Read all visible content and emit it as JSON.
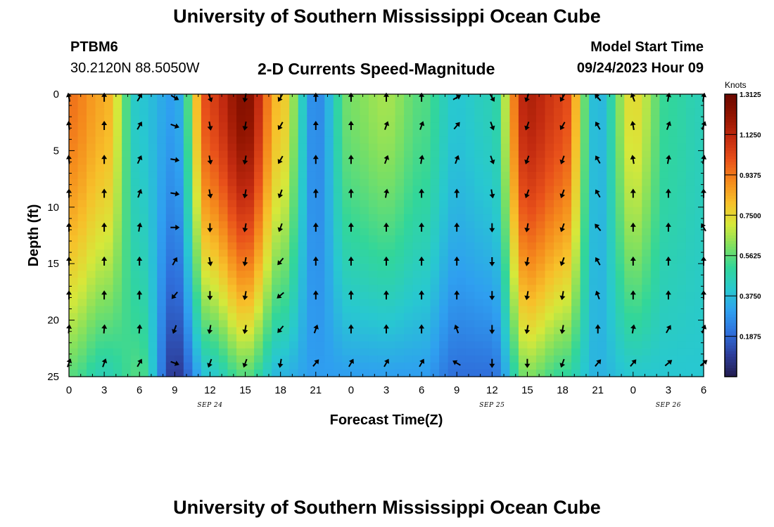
{
  "header": {
    "title": "University of Southern Mississippi Ocean Cube",
    "footer_title": "University of Southern Mississippi Ocean Cube",
    "station": "PTBM6",
    "coords": "30.2120N  88.5050W",
    "plot_title": "2-D Currents Speed-Magnitude",
    "model_start_label": "Model Start Time",
    "model_start_value": "09/24/2023 Hour 09"
  },
  "chart_data": {
    "type": "heatmap",
    "title": "2-D Currents Speed-Magnitude",
    "xlabel": "Forecast Time(Z)",
    "ylabel": "Depth (ft)",
    "x_hours_range": [
      0,
      54
    ],
    "y_range": [
      0,
      25
    ],
    "x_tick_hours": [
      0,
      3,
      6,
      9,
      12,
      15,
      18,
      21,
      24,
      27,
      30,
      33,
      36,
      39,
      42,
      45,
      48,
      51,
      54
    ],
    "x_tick_labels": [
      "0",
      "3",
      "6",
      "9",
      "12",
      "15",
      "18",
      "21",
      "0",
      "3",
      "6",
      "9",
      "12",
      "15",
      "18",
      "21",
      "0",
      "3",
      "6"
    ],
    "y_ticks": [
      0,
      5,
      10,
      15,
      20,
      25
    ],
    "date_labels": [
      {
        "hour": 12,
        "label": "SEP 24"
      },
      {
        "hour": 36,
        "label": "SEP 25"
      },
      {
        "hour": 51,
        "label": "SEP 26"
      }
    ],
    "colorbar": {
      "title": "Knots",
      "min": 0,
      "max": 1.3125,
      "ticks": [
        "1.3125",
        "1.1250",
        "0.9375",
        "0.7500",
        "0.5625",
        "0.3750",
        "0.1875"
      ],
      "colors": [
        "#231d4f",
        "#2d3d9a",
        "#2f6fdb",
        "#2f9ff0",
        "#28c8d0",
        "#32d69a",
        "#7fe060",
        "#d6e83a",
        "#f7c02a",
        "#f58a1c",
        "#e8501a",
        "#c22a10",
        "#911400",
        "#6a0800"
      ]
    },
    "speed_profile_knots": [
      {
        "hour": 0,
        "surface": 0.95,
        "bottom": 0.55
      },
      {
        "hour": 3,
        "surface": 0.85,
        "bottom": 0.45
      },
      {
        "hour": 6,
        "surface": 0.4,
        "bottom": 0.55
      },
      {
        "hour": 9,
        "surface": 0.3,
        "bottom": 0.08
      },
      {
        "hour": 12,
        "surface": 1.05,
        "bottom": 0.4
      },
      {
        "hour": 15,
        "surface": 1.25,
        "bottom": 0.55
      },
      {
        "hour": 18,
        "surface": 0.8,
        "bottom": 0.35
      },
      {
        "hour": 21,
        "surface": 0.25,
        "bottom": 0.3
      },
      {
        "hour": 24,
        "surface": 0.6,
        "bottom": 0.3
      },
      {
        "hour": 27,
        "surface": 0.65,
        "bottom": 0.3
      },
      {
        "hour": 30,
        "surface": 0.55,
        "bottom": 0.3
      },
      {
        "hour": 33,
        "surface": 0.4,
        "bottom": 0.2
      },
      {
        "hour": 36,
        "surface": 0.45,
        "bottom": 0.2
      },
      {
        "hour": 39,
        "surface": 1.15,
        "bottom": 0.6
      },
      {
        "hour": 42,
        "surface": 1.05,
        "bottom": 0.5
      },
      {
        "hour": 45,
        "surface": 0.35,
        "bottom": 0.35
      },
      {
        "hour": 48,
        "surface": 0.75,
        "bottom": 0.4
      },
      {
        "hour": 51,
        "surface": 0.5,
        "bottom": 0.4
      },
      {
        "hour": 54,
        "surface": 0.45,
        "bottom": 0.4
      }
    ],
    "arrow_depths_ft": [
      0.3,
      2.8,
      5.8,
      8.8,
      11.8,
      14.8,
      17.8,
      20.8,
      23.8
    ],
    "arrows": [
      {
        "hour": 0,
        "dir": [
          350,
          355,
          355,
          0,
          0,
          0,
          0,
          5,
          20
        ]
      },
      {
        "hour": 3,
        "dir": [
          0,
          0,
          0,
          0,
          0,
          0,
          0,
          5,
          20
        ]
      },
      {
        "hour": 6,
        "dir": [
          30,
          30,
          25,
          20,
          10,
          0,
          0,
          5,
          30
        ]
      },
      {
        "hour": 9,
        "dir": [
          120,
          110,
          100,
          100,
          90,
          30,
          220,
          200,
          110
        ]
      },
      {
        "hour": 12,
        "dir": [
          160,
          170,
          170,
          170,
          180,
          170,
          180,
          190,
          200
        ]
      },
      {
        "hour": 15,
        "dir": [
          190,
          190,
          190,
          190,
          190,
          190,
          190,
          190,
          200
        ]
      },
      {
        "hour": 18,
        "dir": [
          210,
          210,
          210,
          200,
          200,
          220,
          230,
          220,
          190
        ]
      },
      {
        "hour": 21,
        "dir": [
          0,
          0,
          0,
          0,
          0,
          0,
          0,
          20,
          40
        ]
      },
      {
        "hour": 24,
        "dir": [
          0,
          0,
          0,
          0,
          0,
          0,
          0,
          0,
          30
        ]
      },
      {
        "hour": 27,
        "dir": [
          0,
          20,
          20,
          10,
          0,
          0,
          0,
          0,
          30
        ]
      },
      {
        "hour": 30,
        "dir": [
          0,
          20,
          10,
          0,
          0,
          0,
          0,
          0,
          30
        ]
      },
      {
        "hour": 33,
        "dir": [
          60,
          40,
          20,
          0,
          0,
          0,
          0,
          340,
          300
        ]
      },
      {
        "hour": 36,
        "dir": [
          150,
          160,
          160,
          170,
          180,
          180,
          180,
          180,
          180
        ]
      },
      {
        "hour": 39,
        "dir": [
          200,
          200,
          200,
          200,
          190,
          190,
          190,
          190,
          180
        ]
      },
      {
        "hour": 42,
        "dir": [
          210,
          210,
          200,
          200,
          200,
          200,
          190,
          190,
          200
        ]
      },
      {
        "hour": 45,
        "dir": [
          320,
          330,
          330,
          330,
          320,
          330,
          340,
          0,
          40
        ]
      },
      {
        "hour": 48,
        "dir": [
          340,
          350,
          350,
          0,
          0,
          0,
          0,
          10,
          40
        ]
      },
      {
        "hour": 51,
        "dir": [
          10,
          20,
          10,
          0,
          0,
          0,
          0,
          30,
          50
        ]
      },
      {
        "hour": 54,
        "dir": [
          10,
          20,
          10,
          0,
          330,
          0,
          0,
          20,
          50
        ]
      }
    ]
  }
}
